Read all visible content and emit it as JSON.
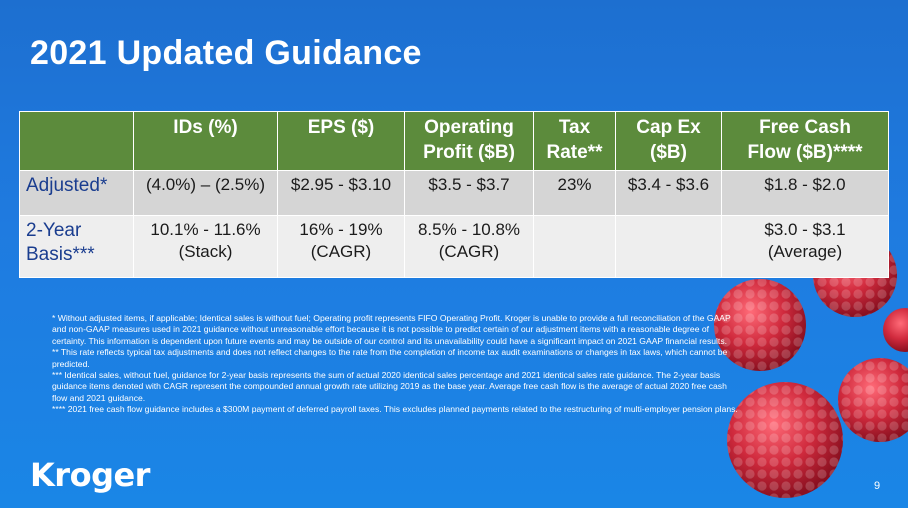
{
  "slide": {
    "title": "2021 Updated Guidance",
    "page_number": "9",
    "logo_text": "Kroger"
  },
  "table": {
    "headers": [
      {
        "line1": "IDs (%)",
        "line2": ""
      },
      {
        "line1": "EPS ($)",
        "line2": ""
      },
      {
        "line1": "Operating",
        "line2": "Profit ($B)"
      },
      {
        "line1": "Tax",
        "line2": "Rate**"
      },
      {
        "line1": "Cap Ex",
        "line2": "($B)"
      },
      {
        "line1": "Free Cash",
        "line2": "Flow ($B)****"
      }
    ],
    "rows": [
      {
        "label": "Adjusted*",
        "cells": [
          {
            "line1": "(4.0%) – (2.5%)",
            "line2": ""
          },
          {
            "line1": "$2.95 - $3.10",
            "line2": ""
          },
          {
            "line1": "$3.5 - $3.7",
            "line2": ""
          },
          {
            "line1": "23%",
            "line2": ""
          },
          {
            "line1": "$3.4 - $3.6",
            "line2": ""
          },
          {
            "line1": "$1.8 - $2.0",
            "line2": ""
          }
        ]
      },
      {
        "label": "2-Year Basis***",
        "cells": [
          {
            "line1": "10.1% - 11.6%",
            "line2": "(Stack)"
          },
          {
            "line1": "16% - 19%",
            "line2": "(CAGR)"
          },
          {
            "line1": "8.5% - 10.8%",
            "line2": "(CAGR)"
          },
          {
            "line1": "",
            "line2": ""
          },
          {
            "line1": "",
            "line2": ""
          },
          {
            "line1": "$3.0 - $3.1",
            "line2": "(Average)"
          }
        ]
      }
    ]
  },
  "footnotes": [
    "* Without adjusted items, if applicable; Identical sales is without fuel; Operating profit represents FIFO Operating Profit. Kroger is unable to provide a full reconciliation of the GAAP and non-GAAP measures used in 2021 guidance without unreasonable effort because it is not possible to predict certain of our adjustment items with a reasonable degree of certainty. This information is dependent upon future events and may be outside of our control and its unavailability could have a significant impact on 2021 GAAP financial results.",
    "** This rate reflects typical tax adjustments and does not reflect changes to the rate from the completion of income tax audit examinations or changes in tax laws, which cannot be predicted.",
    "*** Identical sales, without fuel, guidance for 2-year basis represents the sum of actual 2020 identical sales percentage and 2021 identical sales rate guidance. The 2-year basis guidance items denoted with CAGR represent the compounded annual growth rate utilizing 2019 as the base year.  Average free cash flow is the average of actual 2020 free cash flow and 2021 guidance.",
    "**** 2021 free cash flow guidance includes a $300M payment of deferred payroll taxes. This excludes planned payments related to the restructuring of multi-employer pension plans."
  ],
  "colors": {
    "background": "#1f7be0",
    "header_green": "#5c8b3c",
    "row_adjusted": "#d5d5d5",
    "row_two_year": "#eeeeee",
    "row_label_blue": "#1a3d8f",
    "raspberry": "#c8283a"
  }
}
